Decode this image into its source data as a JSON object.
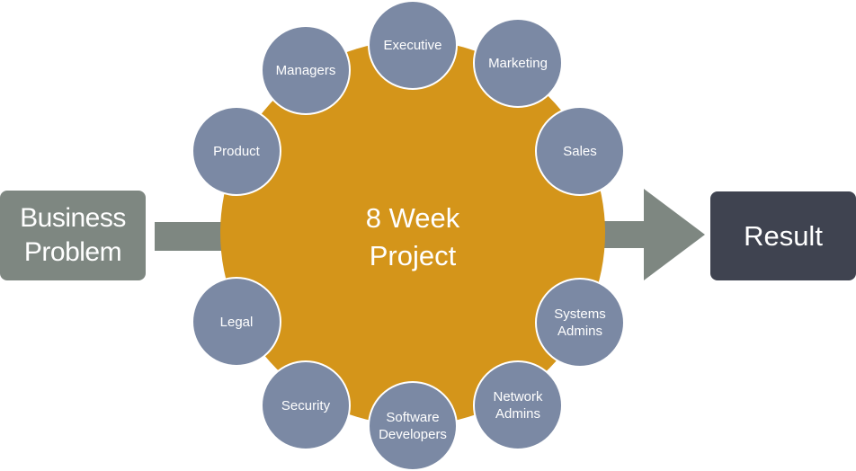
{
  "input": {
    "line1": "Business",
    "line2": "Problem"
  },
  "hub": {
    "line1": "8 Week",
    "line2": "Project"
  },
  "output": {
    "label": "Result"
  },
  "stakeholders": {
    "executive": "Executive",
    "marketing": "Marketing",
    "managers": "Managers",
    "product": "Product",
    "sales": "Sales",
    "legal": "Legal",
    "systems_admins": {
      "line1": "Systems",
      "line2": "Admins"
    },
    "security": "Security",
    "network_admins": {
      "line1": "Network",
      "line2": "Admins"
    },
    "software_developers": {
      "line1": "Software",
      "line2": "Developers"
    }
  },
  "colors": {
    "hub": "#d4951a",
    "node": "#7b89a4",
    "input_box": "#7e8781",
    "result_box": "#3f4350",
    "arrow": "#7e8781"
  }
}
